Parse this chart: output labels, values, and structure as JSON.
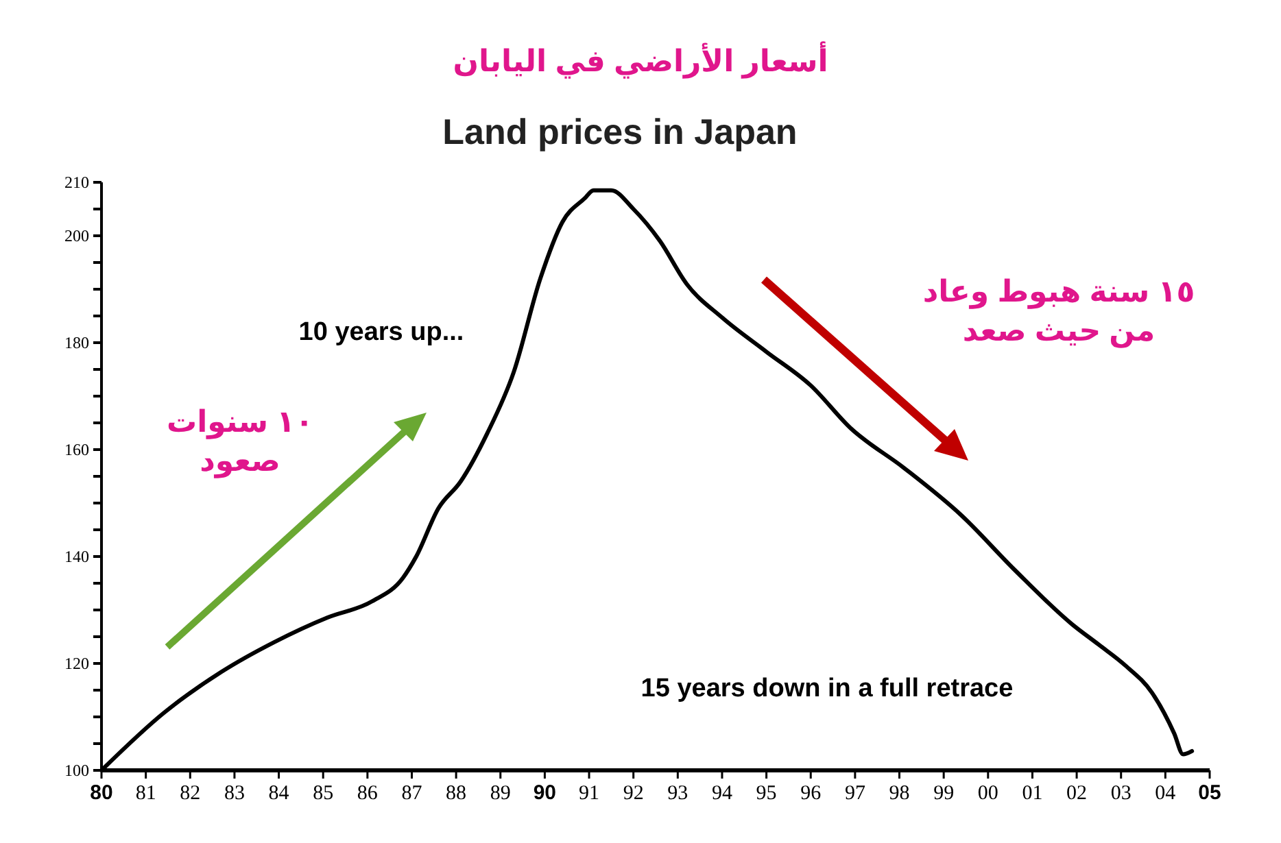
{
  "chart_data": {
    "type": "line",
    "title": "أسعار الأراضي في اليابان",
    "subtitle": "Land prices in Japan",
    "x": [
      1980,
      1981.4,
      1982.7,
      1983.9,
      1985.1,
      1986.1,
      1986.8,
      1987.1,
      1987.6,
      1988.1,
      1988.7,
      1989.3,
      1989.9,
      1990.4,
      1990.9,
      1991.1,
      1991.5,
      1992.0,
      1992.6,
      1993.2,
      1994.0,
      1995.0,
      1996.0,
      1996.9,
      1998.1,
      1999.4,
      2000.6,
      2001.9,
      2002.5,
      2003.1,
      2003.7,
      2004.2,
      2004.4,
      2004.6
    ],
    "series": [
      {
        "color": "#000000",
        "values": [
          100,
          110.7,
          118.4,
          124,
          128.6,
          131.6,
          136,
          140,
          149,
          154,
          163,
          174.5,
          192,
          202.6,
          207,
          208.5,
          208.5,
          205,
          199,
          191,
          184.7,
          178.3,
          172,
          164,
          156.6,
          147.7,
          137.5,
          127.3,
          123.5,
          119.6,
          114.5,
          106.9,
          103,
          103.6
        ]
      }
    ],
    "xlim": [
      1980,
      2005
    ],
    "xticks": [
      {
        "value": 1980,
        "label": "80"
      },
      {
        "value": 1981,
        "label": "81"
      },
      {
        "value": 1982,
        "label": "82"
      },
      {
        "value": 1983,
        "label": "83"
      },
      {
        "value": 1984,
        "label": "84"
      },
      {
        "value": 1985,
        "label": "85"
      },
      {
        "value": 1986,
        "label": "86"
      },
      {
        "value": 1987,
        "label": "87"
      },
      {
        "value": 1988,
        "label": "88"
      },
      {
        "value": 1989,
        "label": "89"
      },
      {
        "value": 1990,
        "label": "90"
      },
      {
        "value": 1991,
        "label": "91"
      },
      {
        "value": 1992,
        "label": "92"
      },
      {
        "value": 1993,
        "label": "93"
      },
      {
        "value": 1994,
        "label": "94"
      },
      {
        "value": 1995,
        "label": "95"
      },
      {
        "value": 1996,
        "label": "96"
      },
      {
        "value": 1997,
        "label": "97"
      },
      {
        "value": 1998,
        "label": "98"
      },
      {
        "value": 1999,
        "label": "99"
      },
      {
        "value": 2000,
        "label": "00"
      },
      {
        "value": 2001,
        "label": "01"
      },
      {
        "value": 2002,
        "label": "02"
      },
      {
        "value": 2003,
        "label": "03"
      },
      {
        "value": 2004,
        "label": "04"
      },
      {
        "value": 2005,
        "label": "05"
      }
    ],
    "ylim": [
      100,
      210
    ],
    "yticks": [
      100,
      {
        "value": 105,
        "label": null
      },
      {
        "value": 110,
        "label": null
      },
      {
        "value": 115,
        "label": null
      },
      120,
      {
        "value": 125,
        "label": null
      },
      {
        "value": 130,
        "label": null
      },
      {
        "value": 135,
        "label": null
      },
      140,
      {
        "value": 145,
        "label": null
      },
      {
        "value": 150,
        "label": null
      },
      {
        "value": 155,
        "label": null
      },
      160,
      {
        "value": 165,
        "label": null
      },
      {
        "value": 170,
        "label": null
      },
      {
        "value": 175,
        "label": null
      },
      180,
      {
        "value": 185,
        "label": null
      },
      {
        "value": 190,
        "label": null
      },
      {
        "value": 195,
        "label": null
      },
      200,
      {
        "value": 205,
        "label": null
      },
      210
    ],
    "annotations": [
      "10 years up...",
      "15 years down in a full retrace",
      "١٠ سنوات\nصعود",
      "١٥ سنة هبوط وعاد\nمن حيث صعد"
    ],
    "grid": false,
    "marker": "none",
    "line_style": "solid"
  }
}
